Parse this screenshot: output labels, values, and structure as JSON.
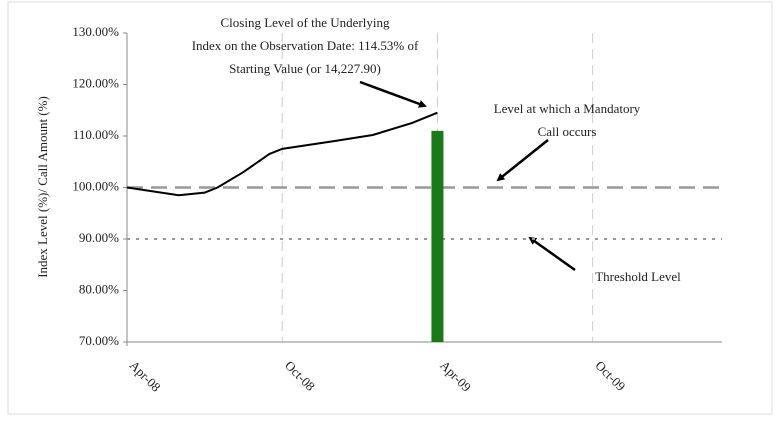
{
  "chart_data": {
    "type": "line",
    "ylabel": "Index Level (%)/ Call Amount (%)",
    "xlim": [
      0,
      23
    ],
    "xticks": [
      {
        "value": 0,
        "label": "Apr-08"
      },
      {
        "value": 6,
        "label": "Oct-08"
      },
      {
        "value": 12,
        "label": "Apr-09"
      },
      {
        "value": 18,
        "label": "Oct-09"
      }
    ],
    "ylim": [
      70,
      130
    ],
    "yticks": [
      {
        "value": 70,
        "label": "70.00%"
      },
      {
        "value": 80,
        "label": "80.00%"
      },
      {
        "value": 90,
        "label": "90.00%"
      },
      {
        "value": 100,
        "label": "100.00%"
      },
      {
        "value": 110,
        "label": "110.00%"
      },
      {
        "value": 120,
        "label": "120.00%"
      },
      {
        "value": 130,
        "label": "130.00%"
      }
    ],
    "xgrid": true,
    "series": [
      {
        "color": "#000000",
        "x": [
          0,
          2,
          3,
          3.5,
          4.5,
          5.5,
          6,
          8,
          9.5,
          11,
          12
        ],
        "values": [
          100,
          98.5,
          99,
          100,
          103,
          106.5,
          107.5,
          109,
          110.2,
          112.5,
          114.53
        ]
      }
    ],
    "bars": [
      {
        "x": 12,
        "value": 111,
        "color": "#1a7a1a"
      }
    ],
    "hlines": [
      {
        "value": 100,
        "style": "dashed",
        "color": "#999999"
      },
      {
        "value": 90,
        "style": "dotted",
        "color": "#999999"
      }
    ],
    "annotations": [
      {
        "lines": [
          "Closing Level of the Underlying",
          "Index on the Observation Date: 114.53% of",
          "Starting Value (or 14,227.90)"
        ]
      },
      {
        "lines": [
          "Level at which a Mandatory",
          "Call occurs"
        ]
      },
      {
        "lines": [
          "Threshold Level"
        ]
      }
    ]
  }
}
